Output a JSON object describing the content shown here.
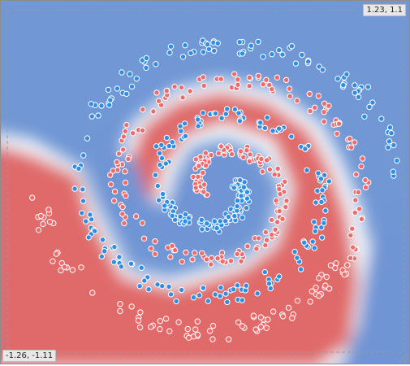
{
  "plot": {
    "coord_top_right": "1.23, 1.1",
    "coord_bottom_left": "-1.26, -1.11"
  },
  "colors": {
    "class_blue": "#2f8de4",
    "class_red": "#f06b6b",
    "region_blue": "#6f94d4",
    "region_red": "#e26a6a",
    "boundary": "#ffffff"
  },
  "legend_icons": [
    "resize-grip-icon"
  ]
}
